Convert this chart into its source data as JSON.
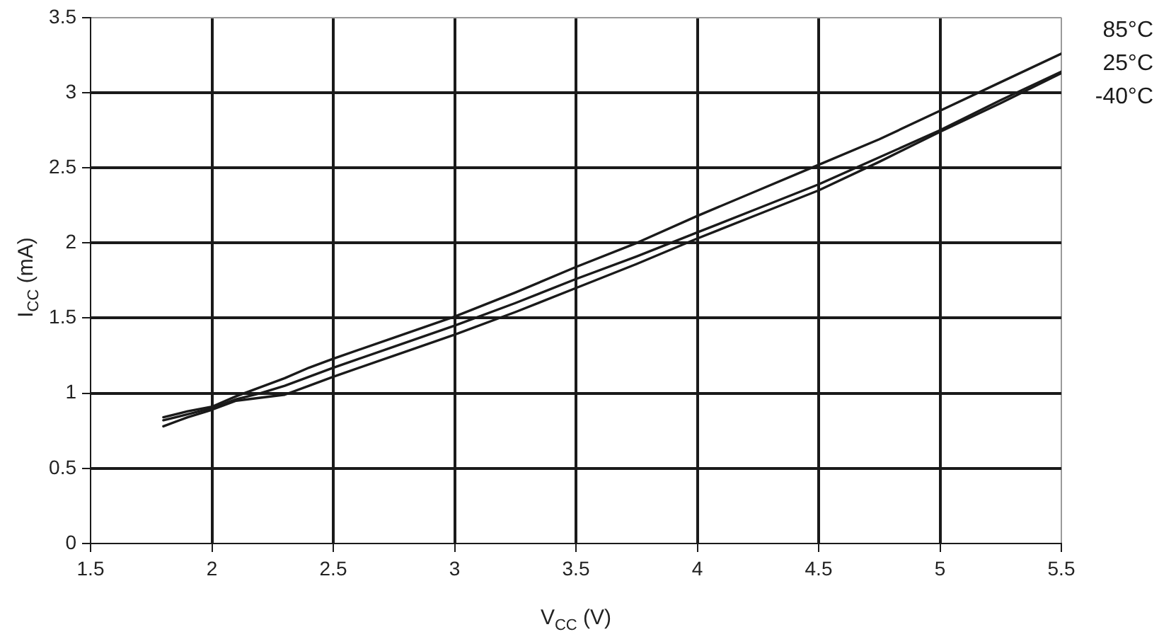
{
  "chart_data": {
    "type": "line",
    "xlabel": "V$_{CC}$ (V)",
    "ylabel": "I$_{CC}$ (mA)",
    "xlim": [
      1.5,
      5.5
    ],
    "xticks": [
      1.5,
      2,
      2.5,
      3,
      3.5,
      4,
      4.5,
      5,
      5.5
    ],
    "ylim": [
      0,
      3.5
    ],
    "yticks": [
      0,
      0.5,
      1,
      1.5,
      2,
      2.5,
      3,
      3.5
    ],
    "grid": true,
    "marker": "none",
    "x": [
      1.8,
      1.9,
      2.0,
      2.1,
      2.2,
      2.3,
      2.4,
      2.5,
      2.75,
      3.0,
      3.25,
      3.5,
      3.75,
      4.0,
      4.25,
      4.5,
      4.75,
      5.0,
      5.25,
      5.5
    ],
    "series": [
      {
        "name": "85°C",
        "color": "#1a1a1a",
        "values": [
          0.84,
          0.88,
          0.91,
          0.98,
          1.04,
          1.1,
          1.17,
          1.23,
          1.37,
          1.51,
          1.67,
          1.84,
          2.0,
          2.18,
          2.35,
          2.52,
          2.69,
          2.88,
          3.07,
          3.26
        ]
      },
      {
        "name": "25°C",
        "color": "#1a1a1a",
        "values": [
          0.82,
          0.86,
          0.9,
          0.96,
          1.0,
          1.05,
          1.11,
          1.17,
          1.31,
          1.45,
          1.6,
          1.76,
          1.91,
          2.07,
          2.23,
          2.39,
          2.57,
          2.75,
          2.95,
          3.14
        ]
      },
      {
        "name": "-40°C",
        "color": "#1a1a1a",
        "values": [
          0.78,
          0.84,
          0.89,
          0.95,
          0.97,
          0.99,
          1.05,
          1.11,
          1.25,
          1.39,
          1.54,
          1.7,
          1.86,
          2.03,
          2.19,
          2.35,
          2.54,
          2.74,
          2.93,
          3.13
        ]
      }
    ]
  }
}
